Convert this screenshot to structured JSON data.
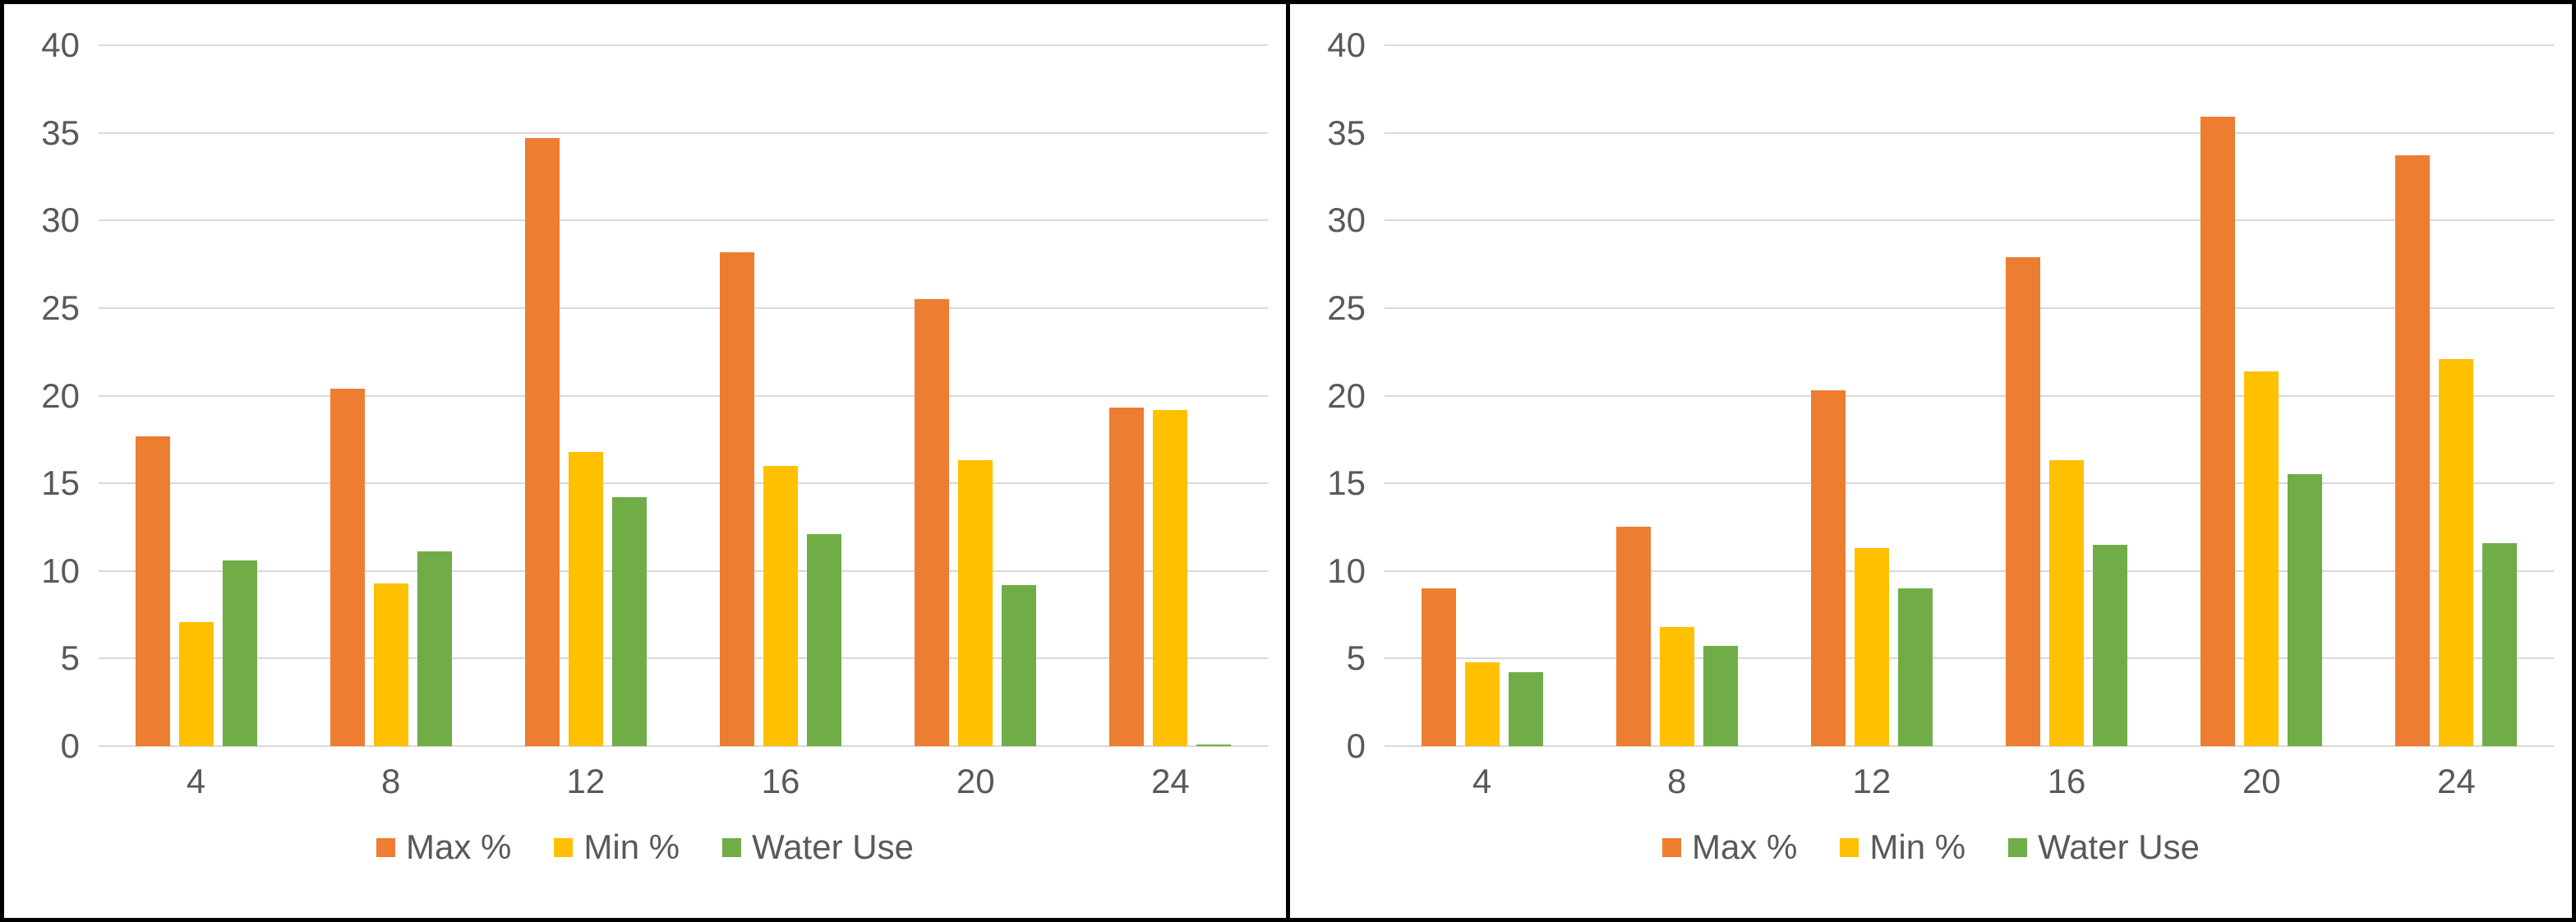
{
  "figure": {
    "background_color": "#ffffff",
    "frame_color": "#000000"
  },
  "colors": {
    "max": "#ED7D31",
    "min": "#FFC000",
    "water": "#70AD47",
    "gridline": "#d9d9d9",
    "axis_text": "#595959"
  },
  "legend": {
    "items": [
      {
        "key": "max",
        "label": "Max %",
        "color": "#ED7D31"
      },
      {
        "key": "min",
        "label": "Min %",
        "color": "#FFC000"
      },
      {
        "key": "water",
        "label": "Water Use",
        "color": "#70AD47"
      }
    ],
    "position": "bottom-center"
  },
  "chart_data": [
    {
      "id": "left",
      "type": "bar",
      "title": "",
      "categories": [
        "4",
        "8",
        "12",
        "16",
        "20",
        "24"
      ],
      "series": [
        {
          "name": "Max %",
          "key": "max",
          "color": "#ED7D31",
          "values": [
            17.7,
            20.4,
            34.7,
            28.2,
            25.5,
            19.3
          ]
        },
        {
          "name": "Min %",
          "key": "min",
          "color": "#FFC000",
          "values": [
            7.1,
            9.3,
            16.8,
            16.0,
            16.3,
            19.2
          ]
        },
        {
          "name": "Water Use",
          "key": "water",
          "color": "#70AD47",
          "values": [
            10.6,
            11.1,
            14.2,
            12.1,
            9.2,
            0.1
          ]
        }
      ],
      "xlabel": "",
      "ylabel": "",
      "ylim": [
        0,
        40
      ],
      "ytick_step": 5,
      "ytick_labels": [
        "0",
        "5",
        "10",
        "15",
        "20",
        "25",
        "30",
        "35",
        "40"
      ],
      "grid": true,
      "legend_position": "bottom"
    },
    {
      "id": "right",
      "type": "bar",
      "title": "",
      "categories": [
        "4",
        "8",
        "12",
        "16",
        "20",
        "24"
      ],
      "series": [
        {
          "name": "Max %",
          "key": "max",
          "color": "#ED7D31",
          "values": [
            9.0,
            12.5,
            20.3,
            27.9,
            35.9,
            33.7
          ]
        },
        {
          "name": "Min %",
          "key": "min",
          "color": "#FFC000",
          "values": [
            4.8,
            6.8,
            11.3,
            16.3,
            21.4,
            22.1
          ]
        },
        {
          "name": "Water Use",
          "key": "water",
          "color": "#70AD47",
          "values": [
            4.2,
            5.7,
            9.0,
            11.5,
            15.5,
            11.6
          ]
        }
      ],
      "xlabel": "",
      "ylabel": "",
      "ylim": [
        0,
        40
      ],
      "ytick_step": 5,
      "ytick_labels": [
        "0",
        "5",
        "10",
        "15",
        "20",
        "25",
        "30",
        "35",
        "40"
      ],
      "grid": true,
      "legend_position": "bottom"
    }
  ]
}
